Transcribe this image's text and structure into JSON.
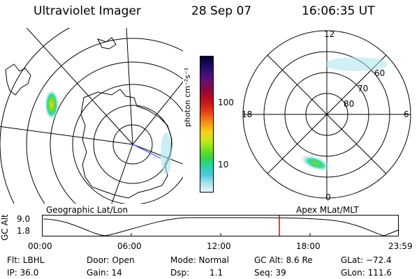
{
  "header": {
    "instrument": "Ultraviolet Imager",
    "date": "28 Sep 07",
    "time": "16:06:35 UT"
  },
  "colorbar": {
    "unit_label": "photon cm⁻²s⁻¹",
    "ticks": [
      "100",
      "10"
    ],
    "colors": [
      "#000033",
      "#1a0b5a",
      "#3d0f7a",
      "#6a0f6e",
      "#8b0a3a",
      "#b50d1d",
      "#d8261a",
      "#ee5a1a",
      "#f99b1a",
      "#f4d21a",
      "#c5e81a",
      "#79e01f",
      "#37d248",
      "#2bd3a8",
      "#4ec8df",
      "#a9e3ee",
      "#e6f6f8"
    ]
  },
  "left_panel": {
    "caption": "Geographic Lat/Lon"
  },
  "right_panel": {
    "caption": "Apex MLat/MLT",
    "mlt_labels": {
      "top": "12",
      "bottom": "0",
      "left": "18",
      "right": "6"
    },
    "lat_labels": [
      "60",
      "70",
      "80"
    ]
  },
  "timeline": {
    "ylabel": "GC Alt",
    "y_ticks": [
      "9.0",
      "1.8"
    ],
    "x_ticks": [
      "00:00",
      "06:00",
      "12:00",
      "18:00",
      "23:59"
    ],
    "marker_color": "#dd0000"
  },
  "status": {
    "flt": "Flt: LBHL",
    "ip": "IP: 36.0",
    "door": "Door: Open",
    "gain": "Gain: 14",
    "mode": "Mode: Normal",
    "dsp": "Dsp:",
    "dsp_val": "1.1",
    "gcalt": "GC Alt: 8.6 Re",
    "seq": "Seq: 39",
    "glat": "GLat: −72.4",
    "glon": "GLon: 111.6"
  }
}
